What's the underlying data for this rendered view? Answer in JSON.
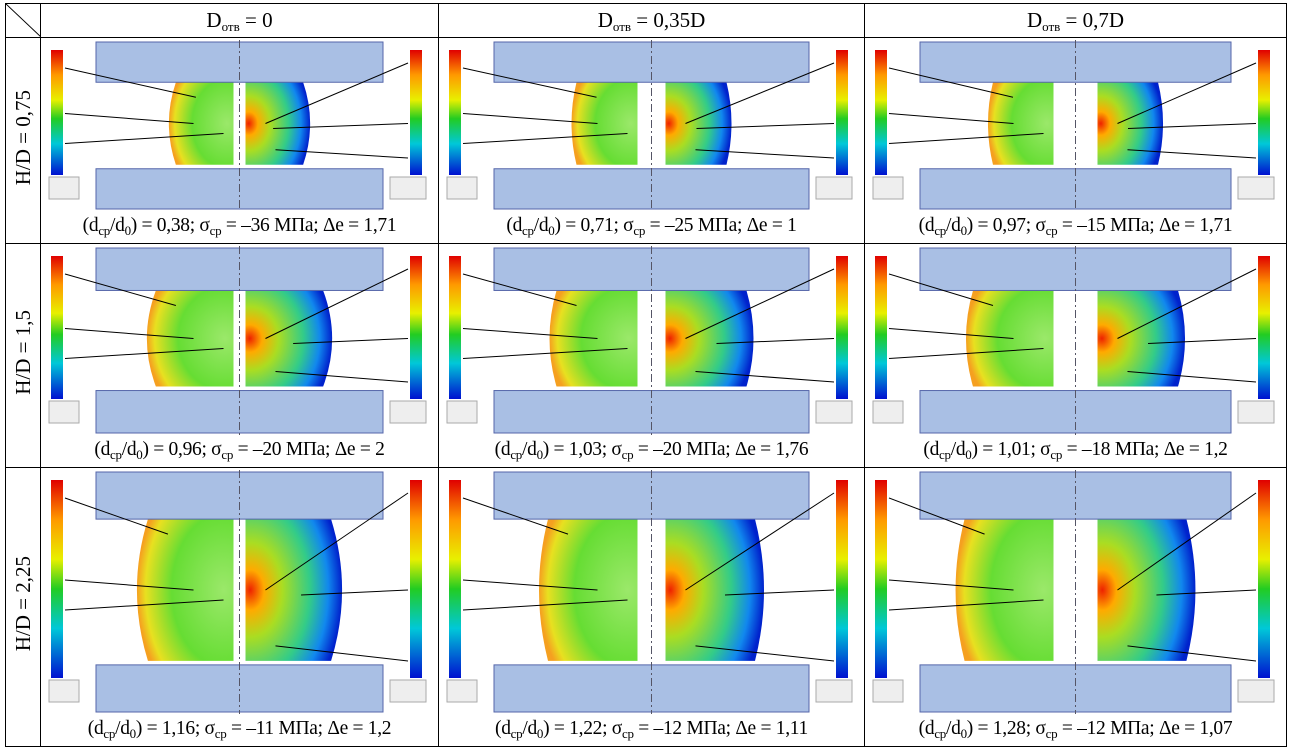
{
  "header": {
    "columns": [
      [
        "D",
        "отв",
        " = 0"
      ],
      [
        "D",
        "отв",
        " = 0,35D"
      ],
      [
        "D",
        "отв",
        " = 0,7D"
      ]
    ]
  },
  "rows": [
    {
      "label": "H/D = 0,75",
      "captions": [
        [
          "(d",
          "ср",
          "/d",
          "0",
          ") = 0,38; σ",
          "ср",
          " = –36 МПа; Δe = 1,71"
        ],
        [
          "(d",
          "ср",
          "/d",
          "0",
          ") = 0,71; σ",
          "ср",
          " = –25 МПа; Δe = 1"
        ],
        [
          "(d",
          "ср",
          "/d",
          "0",
          ") = 0,97; σ",
          "ср",
          " = –15 МПа; Δe = 1,71"
        ]
      ]
    },
    {
      "label": "H/D = 1,5",
      "captions": [
        [
          "(d",
          "ср",
          "/d",
          "0",
          ") = 0,96; σ",
          "ср",
          " = –20 МПа; Δe = 2"
        ],
        [
          "(d",
          "ср",
          "/d",
          "0",
          ") = 1,03; σ",
          "ср",
          " = –20 МПа; Δe = 1,76"
        ],
        [
          "(d",
          "ср",
          "/d",
          "0",
          ") = 1,01; σ",
          "ср",
          " = –18 МПа; Δe = 1,2"
        ]
      ]
    },
    {
      "label": "H/D = 2,25",
      "captions": [
        [
          "(d",
          "ср",
          "/d",
          "0",
          ") = 1,16; σ",
          "ср",
          " = –11 МПа; Δe = 1,2"
        ],
        [
          "(d",
          "ср",
          "/d",
          "0",
          ") = 1,22; σ",
          "ср",
          " = –12 МПа; Δe = 1,11"
        ],
        [
          "(d",
          "ср",
          "/d",
          "0",
          ") = 1,28; σ",
          "ср",
          " = –12 МПа; Δe = 1,07"
        ]
      ]
    }
  ]
}
